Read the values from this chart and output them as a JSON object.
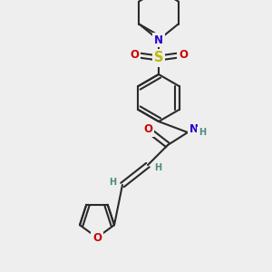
{
  "bg_color": "#eeeeee",
  "bond_color": "#2a2a2a",
  "line_width": 1.5,
  "atom_colors": {
    "N": "#2200cc",
    "O": "#cc0000",
    "S": "#bbbb00",
    "H": "#4a8a80"
  },
  "font_size_atom": 8.5,
  "font_size_h": 7.0,
  "figsize": [
    3.0,
    3.0
  ],
  "dpi": 100
}
